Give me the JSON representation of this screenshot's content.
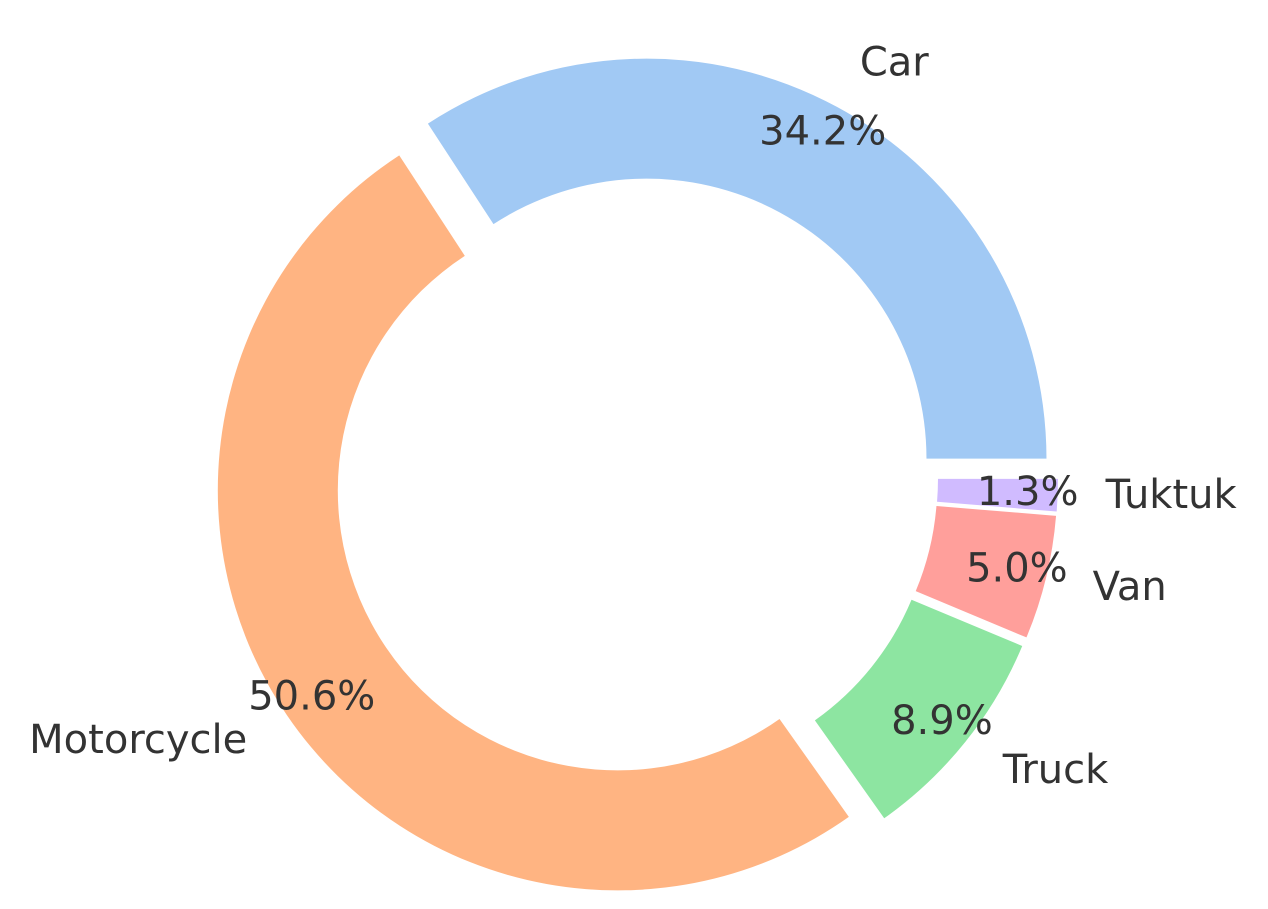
{
  "chart_data": {
    "type": "donut",
    "categories": [
      "Car",
      "Motorcycle",
      "Truck",
      "Van",
      "Tuktuk"
    ],
    "values": [
      34.2,
      50.6,
      8.9,
      5.0,
      1.3
    ],
    "value_labels": [
      "34.2%",
      "50.6%",
      "8.9%",
      "5.0%",
      "1.3%"
    ],
    "colors": [
      "#a1c9f4",
      "#ffb482",
      "#8de5a1",
      "#ff9f9b",
      "#d0bbff"
    ]
  }
}
